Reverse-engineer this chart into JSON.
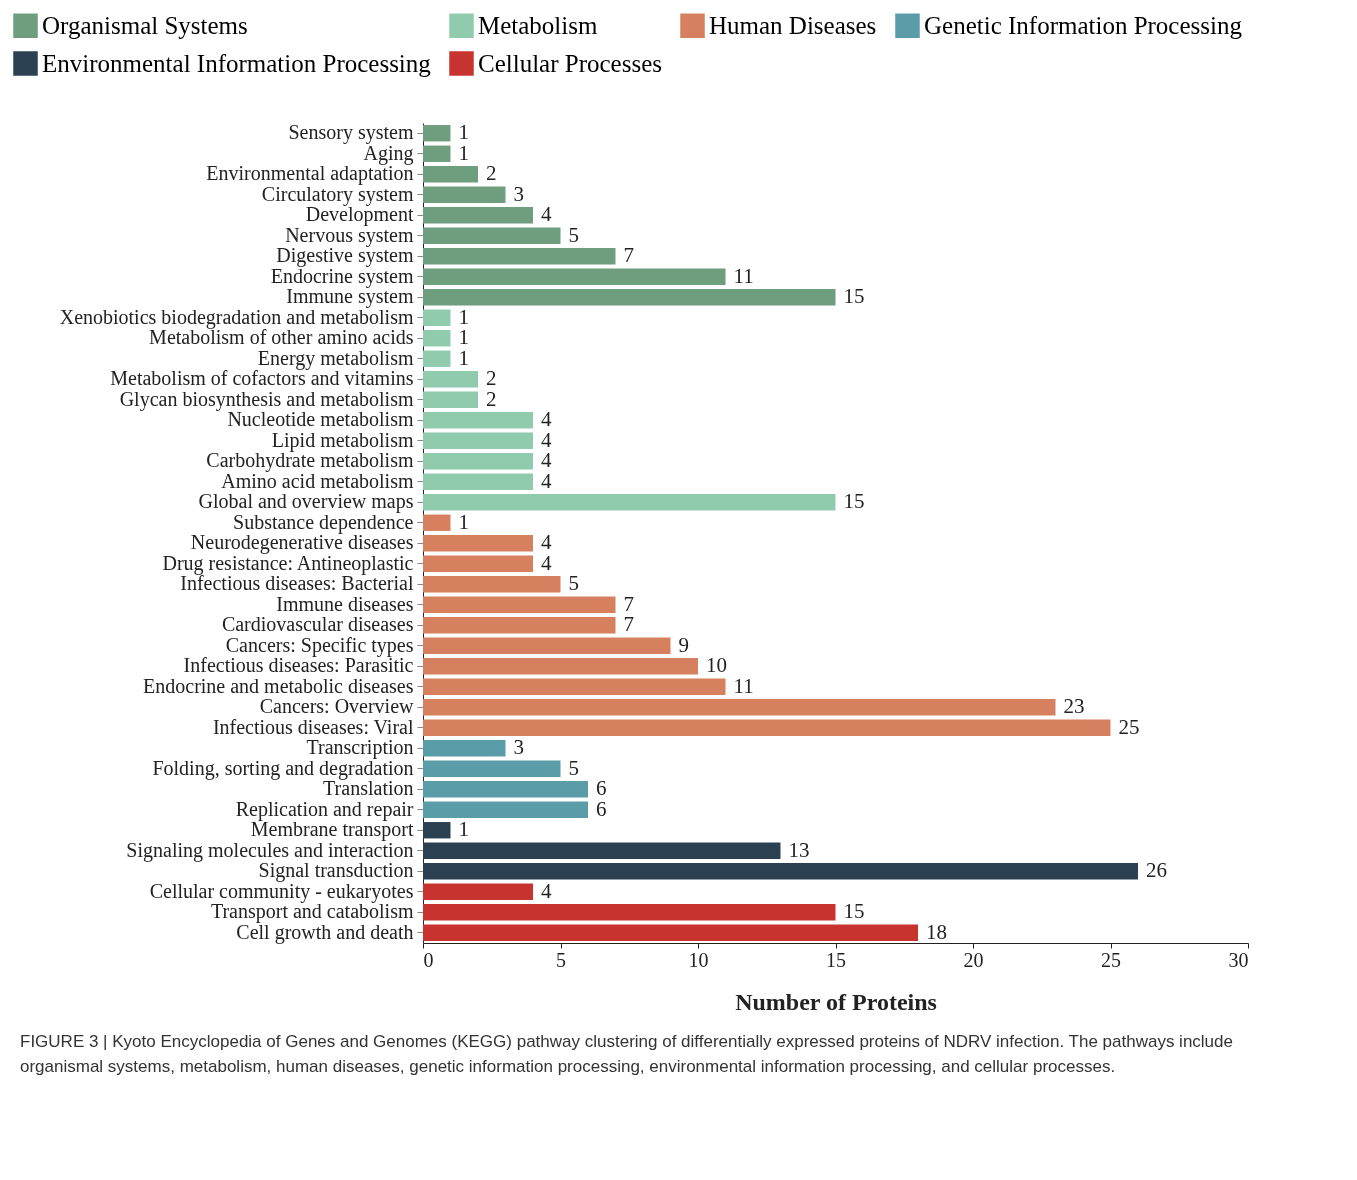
{
  "chart_data": {
    "type": "bar",
    "orientation": "horizontal",
    "categories": [
      "Sensory system",
      "Aging",
      "Environmental adaptation",
      "Circulatory system",
      "Development",
      "Nervous system",
      "Digestive system",
      "Endocrine system",
      "Immune system",
      "Xenobiotics biodegradation and metabolism",
      "Metabolism of other amino acids",
      "Energy metabolism",
      "Metabolism of cofactors and vitamins",
      "Glycan biosynthesis and metabolism",
      "Nucleotide metabolism",
      "Lipid metabolism",
      "Carbohydrate metabolism",
      "Amino acid metabolism",
      "Global and overview maps",
      "Substance dependence",
      "Neurodegenerative diseases",
      "Drug resistance: Antineoplastic",
      "Infectious diseases: Bacterial",
      "Immune diseases",
      "Cardiovascular diseases",
      "Cancers: Specific types",
      "Infectious diseases: Parasitic",
      "Endocrine and metabolic diseases",
      "Cancers: Overview",
      "Infectious diseases: Viral",
      "Transcription",
      "Folding, sorting and degradation",
      "Translation",
      "Replication and repair",
      "Membrane transport",
      "Signaling molecules and interaction",
      "Signal transduction",
      "Cellular community - eukaryotes",
      "Transport and catabolism",
      "Cell growth and death"
    ],
    "series": [
      {
        "name": "Organismal Systems",
        "color": "#6e9e7e",
        "values": [
          1,
          1,
          2,
          3,
          4,
          5,
          7,
          11,
          15,
          null,
          null,
          null,
          null,
          null,
          null,
          null,
          null,
          null,
          null,
          null,
          null,
          null,
          null,
          null,
          null,
          null,
          null,
          null,
          null,
          null,
          null,
          null,
          null,
          null,
          null,
          null,
          null,
          null,
          null,
          null
        ]
      },
      {
        "name": "Metabolism",
        "color": "#90cbae",
        "values": [
          null,
          null,
          null,
          null,
          null,
          null,
          null,
          null,
          null,
          1,
          1,
          1,
          2,
          2,
          4,
          4,
          4,
          4,
          15,
          null,
          null,
          null,
          null,
          null,
          null,
          null,
          null,
          null,
          null,
          null,
          null,
          null,
          null,
          null,
          null,
          null,
          null,
          null,
          null,
          null
        ]
      },
      {
        "name": "Human Diseases",
        "color": "#d6805f",
        "values": [
          null,
          null,
          null,
          null,
          null,
          null,
          null,
          null,
          null,
          null,
          null,
          null,
          null,
          null,
          null,
          null,
          null,
          null,
          null,
          1,
          4,
          4,
          5,
          7,
          7,
          9,
          10,
          11,
          23,
          25,
          null,
          null,
          null,
          null,
          null,
          null,
          null,
          null,
          null,
          null
        ]
      },
      {
        "name": "Genetic Information Processing",
        "color": "#5a9ca8",
        "values": [
          null,
          null,
          null,
          null,
          null,
          null,
          null,
          null,
          null,
          null,
          null,
          null,
          null,
          null,
          null,
          null,
          null,
          null,
          null,
          null,
          null,
          null,
          null,
          null,
          null,
          null,
          null,
          null,
          null,
          null,
          3,
          5,
          6,
          6,
          null,
          null,
          null,
          null,
          null,
          null
        ]
      },
      {
        "name": "Environmental Information Processing",
        "color": "#2b4152",
        "values": [
          null,
          null,
          null,
          null,
          null,
          null,
          null,
          null,
          null,
          null,
          null,
          null,
          null,
          null,
          null,
          null,
          null,
          null,
          null,
          null,
          null,
          null,
          null,
          null,
          null,
          null,
          null,
          null,
          null,
          null,
          null,
          null,
          null,
          null,
          1,
          13,
          26,
          null,
          null,
          null
        ]
      },
      {
        "name": "Cellular Processes",
        "color": "#c7342f",
        "values": [
          null,
          null,
          null,
          null,
          null,
          null,
          null,
          null,
          null,
          null,
          null,
          null,
          null,
          null,
          null,
          null,
          null,
          null,
          null,
          null,
          null,
          null,
          null,
          null,
          null,
          null,
          null,
          null,
          null,
          null,
          null,
          null,
          null,
          null,
          null,
          null,
          null,
          4,
          15,
          18
        ]
      }
    ],
    "xlim": [
      0,
      30
    ],
    "xticks": [
      0,
      5,
      10,
      15,
      20,
      25,
      30
    ],
    "xlabel": "Number of Proteins",
    "data_labels": true,
    "legend": "top",
    "grid": false,
    "annotations": [
      "FIGURE 3 | Kyoto Encyclopedia of Genes and Genomes (KEGG) pathway clustering of differentially expressed proteins of NDRV infection. The pathways include organismal systems, metabolism, human diseases, genetic information processing, environmental information processing, and cellular processes."
    ]
  }
}
